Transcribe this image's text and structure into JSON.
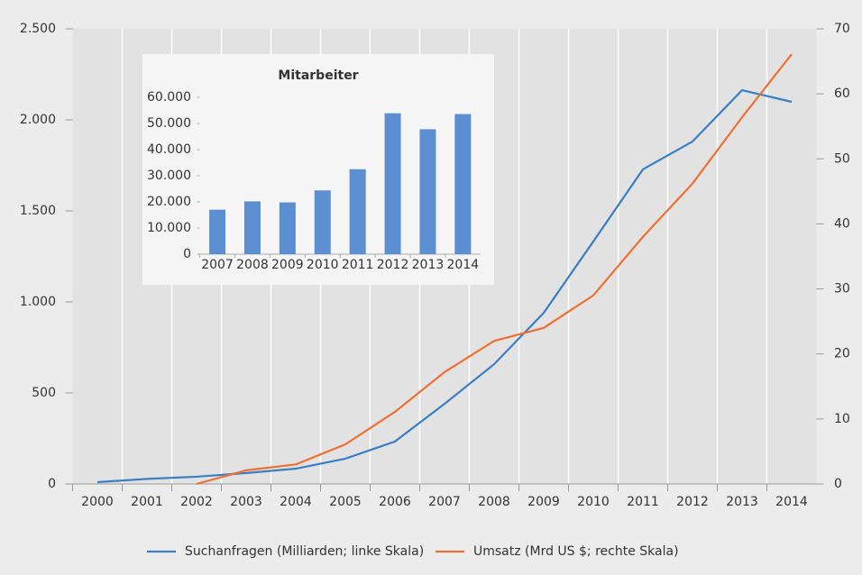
{
  "chart_data": [
    {
      "type": "line",
      "categories": [
        "2000",
        "2001",
        "2002",
        "2003",
        "2004",
        "2005",
        "2006",
        "2007",
        "2008",
        "2009",
        "2010",
        "2011",
        "2012",
        "2013",
        "2014"
      ],
      "series": [
        {
          "name": "Suchanfragen (Milliarden; linke Skala)",
          "color": "#3a7fc4",
          "axis": "y",
          "values": [
            10,
            28,
            40,
            60,
            84,
            139,
            233,
            440,
            658,
            940,
            1332,
            1728,
            1881,
            2163,
            2099
          ]
        },
        {
          "name": "Umsatz (Mrd US $; rechte Skala)",
          "color": "#ee7033",
          "axis": "y2",
          "values": [
            null,
            null,
            0,
            2.1,
            3,
            6.1,
            11.1,
            17.2,
            22,
            24,
            29,
            38,
            46.2,
            56.4,
            66.1
          ]
        }
      ],
      "ylim": [
        0,
        2500
      ],
      "yticks": [
        0,
        500,
        {
          "value": 1000,
          "label": "1.000"
        },
        {
          "value": 1500,
          "label": "1.500"
        },
        {
          "value": 2000,
          "label": "2.000"
        },
        {
          "value": 2500,
          "label": "2.500"
        }
      ],
      "y2lim": [
        0,
        70
      ],
      "y2ticks": [
        0,
        10,
        20,
        30,
        40,
        50,
        60,
        70
      ],
      "grid": true,
      "legend": "bottom"
    },
    {
      "type": "bar",
      "title": "Mitarbeiter",
      "categories": [
        "2007",
        "2008",
        "2009",
        "2010",
        "2011",
        "2012",
        "2013",
        "2014"
      ],
      "values": [
        17000,
        20200,
        19800,
        24400,
        32500,
        53900,
        47800,
        53600
      ],
      "color": "#5b8fd1",
      "ylim": [
        0,
        60000
      ],
      "yticks": [
        0,
        {
          "value": 10000,
          "label": "10.000"
        },
        {
          "value": 20000,
          "label": "20.000"
        },
        {
          "value": 30000,
          "label": "30.000"
        },
        {
          "value": 40000,
          "label": "40.000"
        },
        {
          "value": 50000,
          "label": "50.000"
        },
        {
          "value": 60000,
          "label": "60.000"
        }
      ],
      "grid": false
    }
  ]
}
